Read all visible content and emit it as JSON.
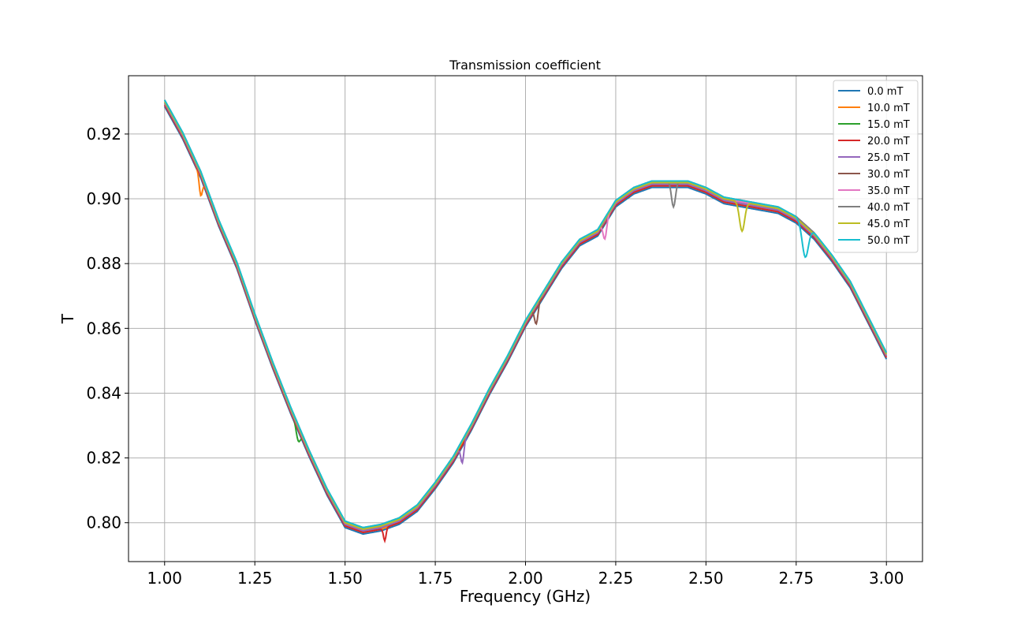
{
  "chart_data": {
    "type": "line",
    "title": "Transmission coefficient",
    "xlabel": "Frequency (GHz)",
    "ylabel": "T",
    "xlim": [
      0.9,
      3.1
    ],
    "ylim": [
      0.788,
      0.938
    ],
    "xticks": [
      "1.00",
      "1.25",
      "1.50",
      "1.75",
      "2.00",
      "2.25",
      "2.50",
      "2.75",
      "3.00"
    ],
    "yticks": [
      "0.80",
      "0.82",
      "0.84",
      "0.86",
      "0.88",
      "0.90",
      "0.92"
    ],
    "grid": true,
    "legend_position": "upper right",
    "baseline": {
      "x": [
        1.0,
        1.05,
        1.1,
        1.15,
        1.2,
        1.25,
        1.3,
        1.35,
        1.4,
        1.45,
        1.5,
        1.55,
        1.6,
        1.65,
        1.7,
        1.75,
        1.8,
        1.85,
        1.9,
        1.95,
        2.0,
        2.05,
        2.1,
        2.15,
        2.2,
        2.25,
        2.3,
        2.35,
        2.4,
        2.45,
        2.5,
        2.55,
        2.6,
        2.65,
        2.7,
        2.75,
        2.8,
        2.85,
        2.9,
        2.95,
        3.0
      ],
      "y": [
        0.93,
        0.92,
        0.908,
        0.893,
        0.88,
        0.864,
        0.849,
        0.835,
        0.822,
        0.81,
        0.8,
        0.798,
        0.799,
        0.801,
        0.805,
        0.812,
        0.82,
        0.83,
        0.841,
        0.851,
        0.862,
        0.871,
        0.88,
        0.887,
        0.89,
        0.899,
        0.903,
        0.905,
        0.905,
        0.905,
        0.903,
        0.9,
        0.899,
        0.898,
        0.897,
        0.894,
        0.889,
        0.882,
        0.874,
        0.863,
        0.852
      ]
    },
    "series": [
      {
        "name": "0.0 mT",
        "color": "#1f77b4",
        "offset": -0.0015,
        "dip": null
      },
      {
        "name": "10.0 mT",
        "color": "#ff7f0e",
        "offset": -0.001,
        "dip": {
          "x": 1.1,
          "depth": 0.006,
          "width": 0.006
        }
      },
      {
        "name": "15.0 mT",
        "color": "#2ca02c",
        "offset": -0.0005,
        "dip": {
          "x": 1.37,
          "depth": 0.004,
          "width": 0.008
        }
      },
      {
        "name": "20.0 mT",
        "color": "#d62728",
        "offset": -0.001,
        "dip": {
          "x": 1.61,
          "depth": 0.004,
          "width": 0.005
        }
      },
      {
        "name": "25.0 mT",
        "color": "#9467bd",
        "offset": -0.0005,
        "dip": {
          "x": 1.825,
          "depth": 0.006,
          "width": 0.006
        }
      },
      {
        "name": "30.0 mT",
        "color": "#8c564b",
        "offset": 0.0,
        "dip": {
          "x": 2.03,
          "depth": 0.006,
          "width": 0.007
        }
      },
      {
        "name": "35.0 mT",
        "color": "#e377c2",
        "offset": 0.0,
        "dip": {
          "x": 2.22,
          "depth": 0.006,
          "width": 0.007
        }
      },
      {
        "name": "40.0 mT",
        "color": "#7f7f7f",
        "offset": 0.0005,
        "dip": {
          "x": 2.41,
          "depth": 0.008,
          "width": 0.008
        }
      },
      {
        "name": "45.0 mT",
        "color": "#bcbd22",
        "offset": 0.0,
        "dip": {
          "x": 2.6,
          "depth": 0.009,
          "width": 0.01
        }
      },
      {
        "name": "50.0 mT",
        "color": "#17becf",
        "offset": 0.0005,
        "dip": {
          "x": 2.775,
          "depth": 0.01,
          "width": 0.012
        }
      }
    ]
  }
}
